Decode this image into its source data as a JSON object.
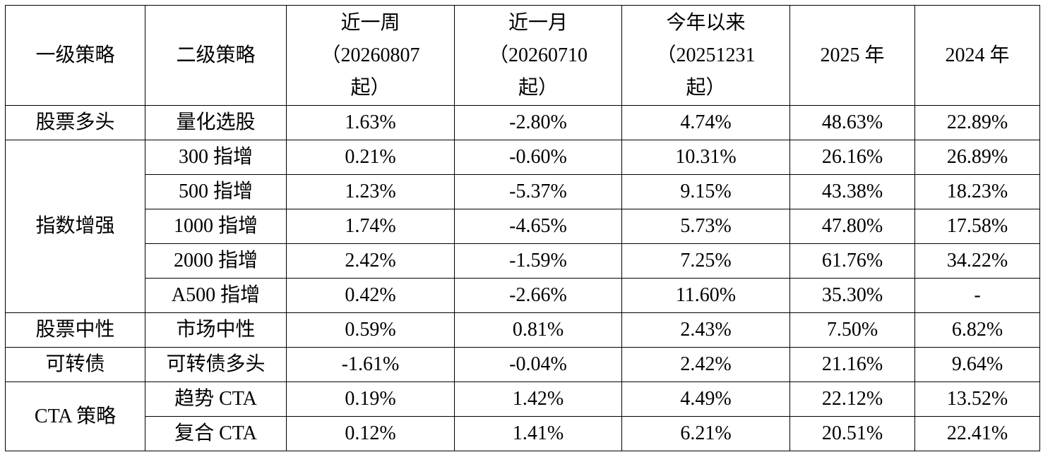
{
  "table": {
    "header": [
      "一级策略",
      "二级策略",
      [
        "近一周",
        "（20260807",
        "起）"
      ],
      [
        "近一月",
        "（20260710",
        "起）"
      ],
      [
        "今年以来",
        "（20251231",
        "起）"
      ],
      "2025 年",
      "2024 年"
    ],
    "groups": [
      {
        "name": "股票多头",
        "rows": [
          [
            "量化选股",
            "1.63%",
            "-2.80%",
            "4.74%",
            "48.63%",
            "22.89%"
          ]
        ]
      },
      {
        "name": "指数增强",
        "rows": [
          [
            "300 指增",
            "0.21%",
            "-0.60%",
            "10.31%",
            "26.16%",
            "26.89%"
          ],
          [
            "500 指增",
            "1.23%",
            "-5.37%",
            "9.15%",
            "43.38%",
            "18.23%"
          ],
          [
            "1000 指增",
            "1.74%",
            "-4.65%",
            "5.73%",
            "47.80%",
            "17.58%"
          ],
          [
            "2000 指增",
            "2.42%",
            "-1.59%",
            "7.25%",
            "61.76%",
            "34.22%"
          ],
          [
            "A500 指增",
            "0.42%",
            "-2.66%",
            "11.60%",
            "35.30%",
            "-"
          ]
        ]
      },
      {
        "name": "股票中性",
        "rows": [
          [
            "市场中性",
            "0.59%",
            "0.81%",
            "2.43%",
            "7.50%",
            "6.82%"
          ]
        ]
      },
      {
        "name": "可转债",
        "rows": [
          [
            "可转债多头",
            "-1.61%",
            "-0.04%",
            "2.42%",
            "21.16%",
            "9.64%"
          ]
        ]
      },
      {
        "name": "CTA 策略",
        "rows": [
          [
            "趋势 CTA",
            "0.19%",
            "1.42%",
            "4.49%",
            "22.12%",
            "13.52%"
          ],
          [
            "复合 CTA",
            "0.12%",
            "1.41%",
            "6.21%",
            "20.51%",
            "22.41%"
          ]
        ]
      }
    ]
  }
}
